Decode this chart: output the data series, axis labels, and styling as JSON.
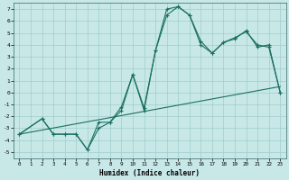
{
  "xlabel": "Humidex (Indice chaleur)",
  "xlim": [
    -0.5,
    23.5
  ],
  "ylim": [
    -5.5,
    7.5
  ],
  "yticks": [
    -5,
    -4,
    -3,
    -2,
    -1,
    0,
    1,
    2,
    3,
    4,
    5,
    6,
    7
  ],
  "xticks": [
    0,
    1,
    2,
    3,
    4,
    5,
    6,
    7,
    8,
    9,
    10,
    11,
    12,
    13,
    14,
    15,
    16,
    17,
    18,
    19,
    20,
    21,
    22,
    23
  ],
  "bg_color": "#c8e8e8",
  "grid_color": "#a0cccc",
  "line_color": "#1a7060",
  "line1_x": [
    0,
    2,
    3,
    4,
    5,
    6,
    7,
    8,
    9,
    10,
    11,
    12,
    13,
    14,
    15,
    16,
    17,
    18,
    19,
    20,
    21,
    22,
    23
  ],
  "line1_y": [
    -3.5,
    -2.2,
    -3.5,
    -3.5,
    -3.5,
    -4.8,
    -3.0,
    -2.5,
    -1.2,
    1.5,
    -1.3,
    3.5,
    7.0,
    7.2,
    6.5,
    4.3,
    3.3,
    4.2,
    4.5,
    5.2,
    3.8,
    4.0,
    0.0
  ],
  "line2_x": [
    0,
    2,
    3,
    4,
    5,
    6,
    7,
    8,
    9,
    10,
    11,
    12,
    13,
    14,
    15,
    16,
    17,
    18,
    19,
    20,
    21,
    22,
    23
  ],
  "line2_y": [
    -3.5,
    -2.2,
    -3.5,
    -3.5,
    -3.5,
    -4.8,
    -2.5,
    -2.5,
    -1.5,
    1.5,
    -1.5,
    3.5,
    6.5,
    7.2,
    6.5,
    4.0,
    3.3,
    4.2,
    4.6,
    5.1,
    4.0,
    3.8,
    0.0
  ],
  "line3_x": [
    0,
    23
  ],
  "line3_y": [
    -3.5,
    0.5
  ]
}
